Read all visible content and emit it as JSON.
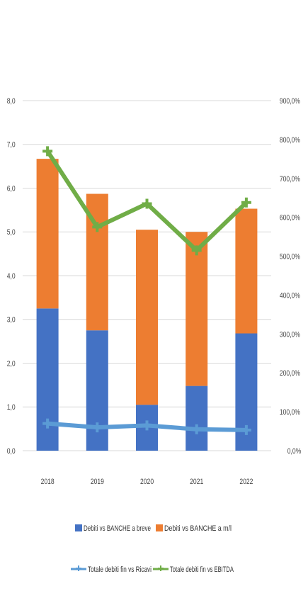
{
  "chart_data": {
    "type": "bar",
    "categories": [
      "2018",
      "2019",
      "2020",
      "2021",
      "2022"
    ],
    "series": [
      {
        "name": "Debiti vs BANCHE a breve",
        "chart_type": "stacked-bar",
        "axis": "left",
        "color": "#4472C4",
        "values": [
          3.25,
          2.75,
          1.05,
          1.48,
          2.68
        ]
      },
      {
        "name": "Debiti vs BANCHE a m/l",
        "chart_type": "stacked-bar",
        "axis": "left",
        "color": "#ED7D31",
        "values": [
          3.42,
          3.12,
          4.0,
          3.52,
          2.85
        ]
      },
      {
        "name": "Totale debiti fin vs Ricavi",
        "chart_type": "line",
        "axis": "right",
        "color": "#5B9BD5",
        "values": [
          70,
          60,
          65,
          55,
          53
        ]
      },
      {
        "name": "Totale debiti fin vs EBITDA",
        "chart_type": "line",
        "axis": "right",
        "color": "#70AD47",
        "values": [
          770,
          575,
          635,
          515,
          638
        ]
      }
    ],
    "y_left": {
      "min": 0,
      "max": 8,
      "step": 1,
      "ticks": [
        "0,0",
        "1,0",
        "2,0",
        "3,0",
        "4,0",
        "5,0",
        "6,0",
        "7,0",
        "8,0"
      ]
    },
    "y_right": {
      "min": 0,
      "max": 900,
      "step": 100,
      "ticks": [
        "0,0%",
        "100,0%",
        "200,0%",
        "300,0%",
        "400,0%",
        "500,0%",
        "600,0%",
        "700,0%",
        "800,0%",
        "900,0%"
      ]
    },
    "grid": true,
    "legend_position": "bottom"
  }
}
